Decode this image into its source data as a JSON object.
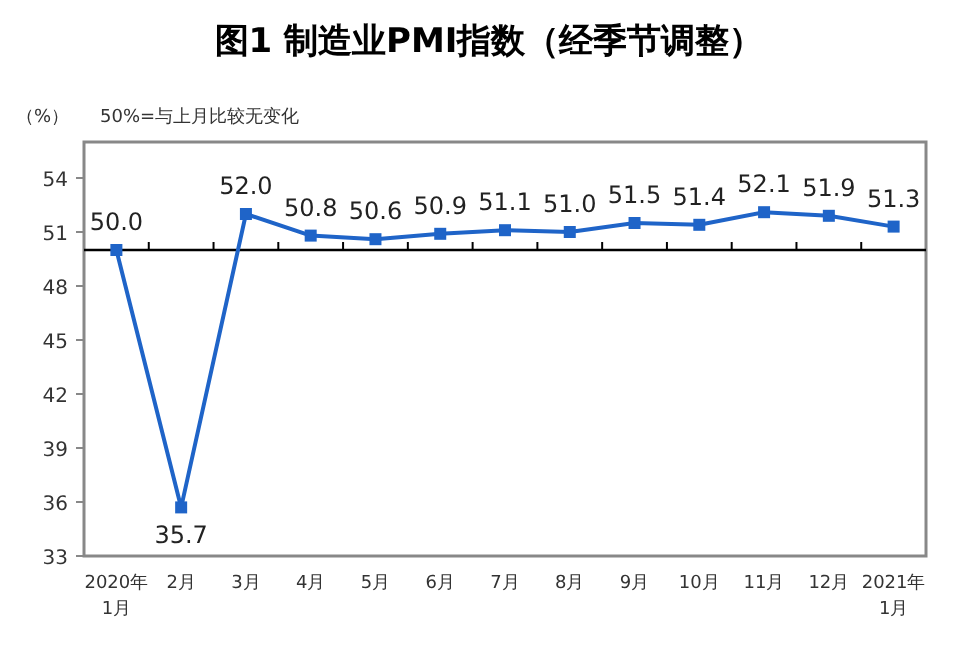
{
  "chart_data": {
    "type": "line",
    "title": "图1 制造业PMI指数（经季节调整）",
    "annotations": [
      "（%）",
      "50%=与上月比较无变化"
    ],
    "categories": [
      "2020年\n1月",
      "2月",
      "3月",
      "4月",
      "5月",
      "6月",
      "7月",
      "8月",
      "9月",
      "10月",
      "11月",
      "12月",
      "2021年\n1月"
    ],
    "values": [
      50.0,
      35.7,
      52.0,
      50.8,
      50.6,
      50.9,
      51.1,
      51.0,
      51.5,
      51.4,
      52.1,
      51.9,
      51.3
    ],
    "color": "#1f64c8",
    "marker": "square",
    "line_style": "solid",
    "value_labels": [
      "50.0",
      "35.7",
      "52.0",
      "50.8",
      "50.6",
      "50.9",
      "51.1",
      "51.0",
      "51.5",
      "51.4",
      "52.1",
      "51.9",
      "51.3"
    ],
    "ylim": [
      33,
      56
    ],
    "yticks": [
      33,
      36,
      39,
      42,
      45,
      48,
      51,
      54
    ],
    "ref_lines": [
      {
        "axis": "y",
        "value": 50,
        "color": "#000000"
      }
    ]
  }
}
